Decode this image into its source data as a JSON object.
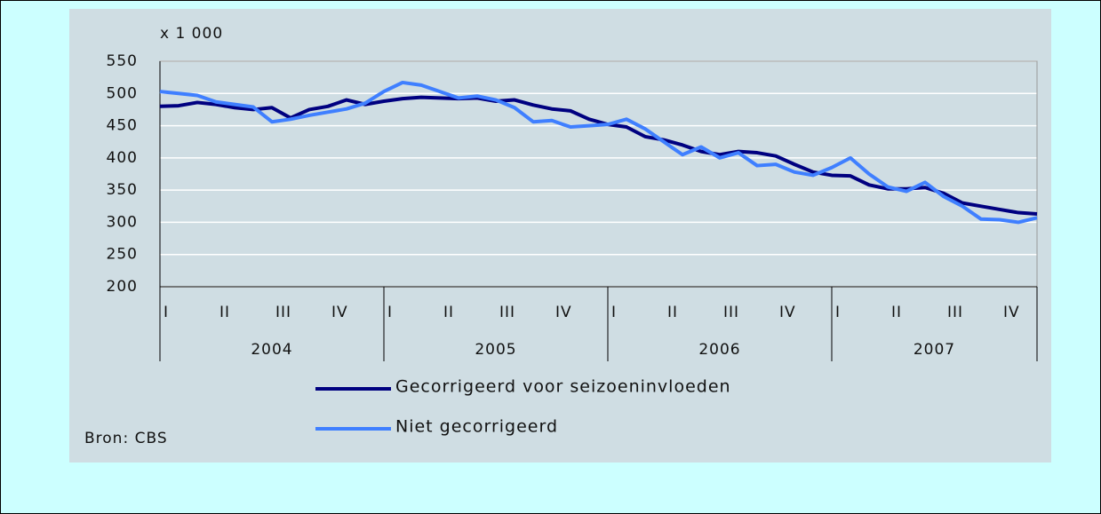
{
  "chart_data": {
    "type": "line",
    "unit_label": "x 1 000",
    "source": "Bron: CBS",
    "categories": [
      "I",
      null,
      null,
      "II",
      null,
      null,
      "III",
      null,
      null,
      "IV",
      null,
      null,
      "I",
      null,
      null,
      "II",
      null,
      null,
      "III",
      null,
      null,
      "IV",
      null,
      null,
      "I",
      null,
      null,
      "II",
      null,
      null,
      "III",
      null,
      null,
      "IV",
      null,
      null,
      "I",
      null,
      null,
      "II",
      null,
      null,
      "III",
      null,
      null,
      "IV",
      null,
      null
    ],
    "years": [
      "2004",
      "2005",
      "2006",
      "2007"
    ],
    "series": [
      {
        "name": "Gecorrigeerd voor seizoeninvloeden",
        "color": "#000080",
        "values": [
          480,
          481,
          486,
          483,
          478,
          475,
          478,
          462,
          475,
          480,
          490,
          483,
          488,
          492,
          494,
          493,
          492,
          493,
          488,
          490,
          482,
          476,
          473,
          460,
          452,
          448,
          433,
          428,
          420,
          410,
          405,
          410,
          408,
          403,
          390,
          378,
          373,
          372,
          358,
          352,
          352,
          354,
          345,
          330,
          325,
          320,
          315,
          313
        ]
      },
      {
        "name": "Niet gecorrigeerd",
        "color": "#3f7fff",
        "values": [
          503,
          500,
          497,
          487,
          483,
          479,
          456,
          460,
          466,
          471,
          476,
          485,
          503,
          517,
          513,
          503,
          493,
          496,
          490,
          478,
          456,
          458,
          448,
          450,
          452,
          460,
          445,
          425,
          405,
          417,
          400,
          408,
          388,
          390,
          378,
          373,
          385,
          400,
          375,
          355,
          348,
          362,
          340,
          325,
          305,
          304,
          300,
          307
        ]
      }
    ],
    "ylim": [
      200,
      550
    ],
    "yticks": [
      200,
      250,
      300,
      350,
      400,
      450,
      500,
      550
    ],
    "grid": true
  }
}
